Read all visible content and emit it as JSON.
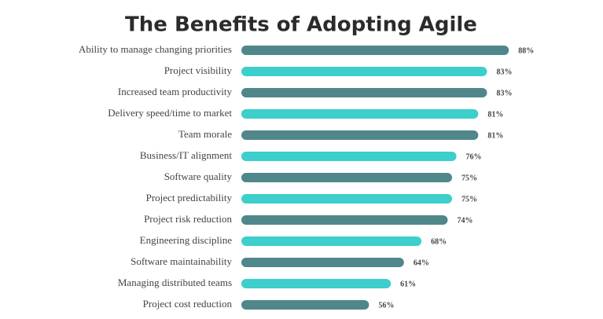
{
  "chart_data": {
    "type": "bar",
    "orientation": "horizontal",
    "title": "The Benefits of Adopting Agile",
    "categories": [
      "Ability to manage changing priorities",
      "Project visibility",
      "Increased team productivity",
      "Delivery speed/time to market",
      "Team morale",
      "Business/IT alignment",
      "Software quality",
      "Project predictability",
      "Project risk reduction",
      "Engineering discipline",
      "Software maintainability",
      "Managing distributed teams",
      "Project cost reduction"
    ],
    "values": [
      88,
      83,
      83,
      81,
      81,
      76,
      75,
      75,
      74,
      68,
      64,
      61,
      56
    ],
    "value_labels": [
      "88%",
      "83%",
      "83%",
      "81%",
      "81%",
      "76%",
      "75%",
      "75%",
      "74%",
      "68%",
      "64%",
      "61%",
      "56%"
    ],
    "colors": [
      "#4f878b",
      "#3ccfcb",
      "#4f878b",
      "#3ccfcb",
      "#4f878b",
      "#3ccfcb",
      "#4f878b",
      "#3ccfcb",
      "#4f878b",
      "#3ccfcb",
      "#4f878b",
      "#3ccfcb",
      "#4f878b"
    ]
  }
}
